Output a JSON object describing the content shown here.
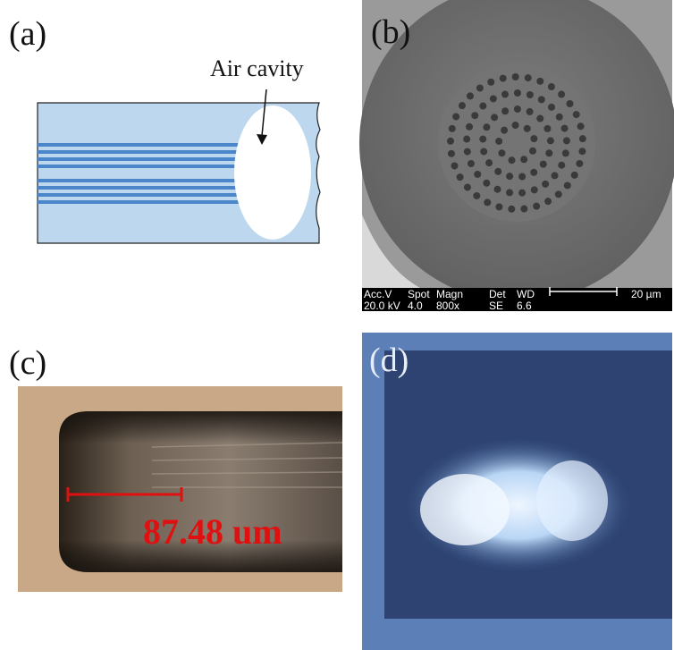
{
  "panels": [
    {
      "label": "(a)",
      "annotation": "Air cavity"
    },
    {
      "label": "(b)",
      "info_bar": {
        "headers": [
          "Acc.V",
          "Spot",
          "Magn",
          "Det",
          "WD"
        ],
        "values": [
          "20.0 kV",
          "4.0",
          "800x",
          "SE",
          "6.6"
        ],
        "scale": "20 µm"
      }
    },
    {
      "label": "(c)",
      "measurement": "87.48 um"
    },
    {
      "label": "(d)"
    }
  ]
}
